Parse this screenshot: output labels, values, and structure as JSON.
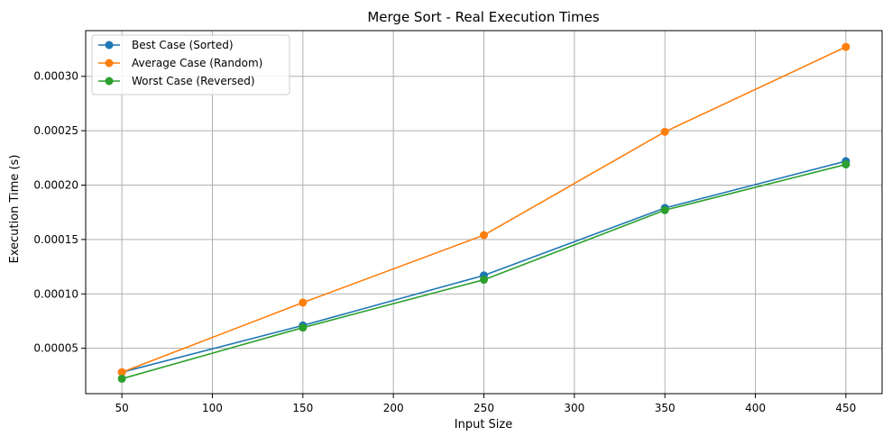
{
  "chart_data": {
    "type": "line",
    "title": "Merge Sort - Real Execution Times",
    "xlabel": "Input Size",
    "ylabel": "Execution Time (s)",
    "x": [
      50,
      150,
      250,
      350,
      450
    ],
    "xlim": [
      30,
      470
    ],
    "ylim": [
      8.3e-06,
      0.000342
    ],
    "xticks": [
      50,
      100,
      150,
      200,
      250,
      300,
      350,
      400,
      450
    ],
    "xtick_labels": [
      "50",
      "100",
      "150",
      "200",
      "250",
      "300",
      "350",
      "400",
      "450"
    ],
    "yticks": [
      5e-05,
      0.0001,
      0.00015,
      0.0002,
      0.00025,
      0.0003
    ],
    "ytick_labels": [
      "0.00005",
      "0.00010",
      "0.00015",
      "0.00020",
      "0.00025",
      "0.00030"
    ],
    "grid": true,
    "legend_position": "top-left",
    "series": [
      {
        "name": "Best Case (Sorted)",
        "color": "#1f77b4",
        "values": [
          2.8e-05,
          7.1e-05,
          0.000117,
          0.000179,
          0.000222
        ]
      },
      {
        "name": "Average Case (Random)",
        "color": "#ff7f0e",
        "values": [
          2.8e-05,
          9.2e-05,
          0.000154,
          0.000249,
          0.000327
        ]
      },
      {
        "name": "Worst Case (Reversed)",
        "color": "#2ca02c",
        "values": [
          2.2e-05,
          6.9e-05,
          0.000113,
          0.000177,
          0.000219
        ]
      }
    ]
  }
}
